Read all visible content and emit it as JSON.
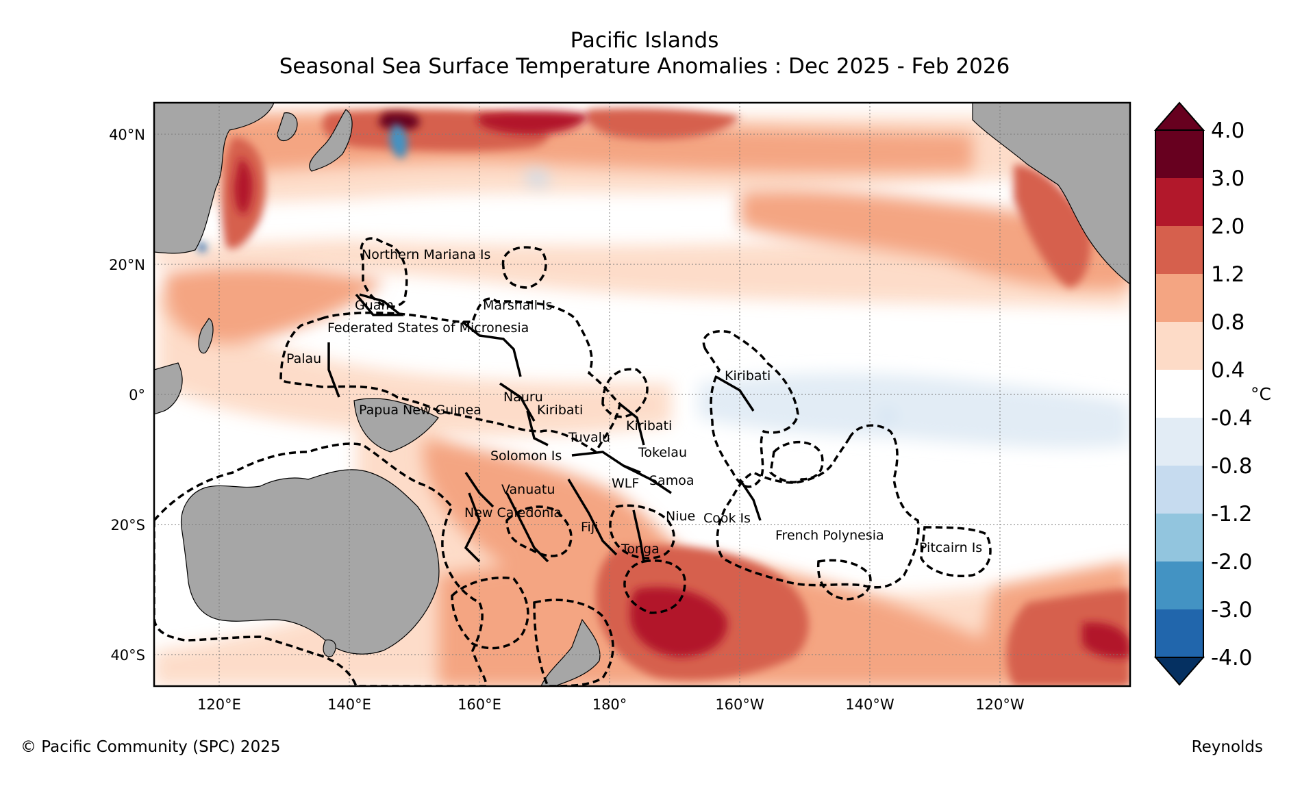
{
  "title": {
    "line1": "Pacific Islands",
    "line2": "Seasonal Sea Surface Temperature Anomalies : Dec 2025 - Feb 2026"
  },
  "axes": {
    "lat_labels": [
      "40°N",
      "20°N",
      "0°",
      "20°S",
      "40°S"
    ],
    "lon_labels": [
      "120°E",
      "140°E",
      "160°E",
      "180°",
      "160°W",
      "140°W",
      "120°W"
    ]
  },
  "colorbar": {
    "unit": "°C",
    "ticks": [
      "4.0",
      "3.0",
      "2.0",
      "1.2",
      "0.8",
      "0.4",
      "-0.4",
      "-0.8",
      "-1.2",
      "-2.0",
      "-3.0",
      "-4.0"
    ],
    "colors": [
      "#67001f",
      "#b2182b",
      "#d6604d",
      "#f4a582",
      "#fddbc7",
      "#ffffff",
      "#e2ecf5",
      "#c6dbef",
      "#92c5de",
      "#4393c3",
      "#2166ac",
      "#053061"
    ]
  },
  "regions": [
    "Northern Mariana Is",
    "Guam",
    "Marshall Is",
    "Federated States of Micronesia",
    "Palau",
    "Kiribati",
    "Nauru",
    "Papua New Guinea",
    "Tuvalu",
    "Solomon Is",
    "Tokelau",
    "WLF",
    "Samoa",
    "Vanuatu",
    "New Caledonia",
    "Fiji",
    "Niue",
    "Cook Is",
    "Tonga",
    "French Polynesia",
    "Pitcairn Is"
  ],
  "footer": {
    "copyright": "© Pacific Community (SPC) 2025",
    "source": "Reynolds"
  }
}
